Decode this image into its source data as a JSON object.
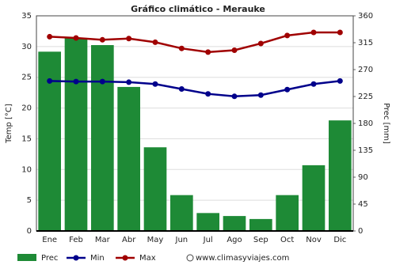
{
  "chart_data": {
    "type": "climate",
    "title": "Gráfico climático - Merauke",
    "y_label": "Temp [°C]",
    "y2_label": "Prec [mm]",
    "categories": [
      "Ene",
      "Feb",
      "Mar",
      "Abr",
      "May",
      "Jun",
      "Jul",
      "Ago",
      "Sep",
      "Oct",
      "Nov",
      "Dic"
    ],
    "series": [
      {
        "name": "Prec",
        "kind": "bar",
        "axis": "y2",
        "color": "#1e8a36",
        "values": [
          300,
          323,
          311,
          241,
          140,
          60,
          30,
          25,
          20,
          60,
          110,
          185
        ]
      },
      {
        "name": "Min",
        "kind": "line",
        "color": "#00008b",
        "values": [
          24.4,
          24.3,
          24.3,
          24.2,
          23.9,
          23.1,
          22.3,
          21.9,
          22.1,
          23.0,
          23.9,
          24.4
        ]
      },
      {
        "name": "Max",
        "kind": "line",
        "color": "#a00000",
        "values": [
          31.6,
          31.4,
          31.1,
          31.3,
          30.7,
          29.7,
          29.1,
          29.4,
          30.5,
          31.8,
          32.3,
          32.3
        ]
      }
    ],
    "ylim": [
      0,
      35
    ],
    "yticks": [
      0,
      5,
      10,
      15,
      20,
      25,
      30,
      35
    ],
    "y2lim": [
      0,
      360
    ],
    "y2ticks": [
      0,
      45,
      90,
      135,
      180,
      225,
      270,
      315,
      360
    ],
    "grid": true,
    "source": "www.climasyviajes.com"
  }
}
